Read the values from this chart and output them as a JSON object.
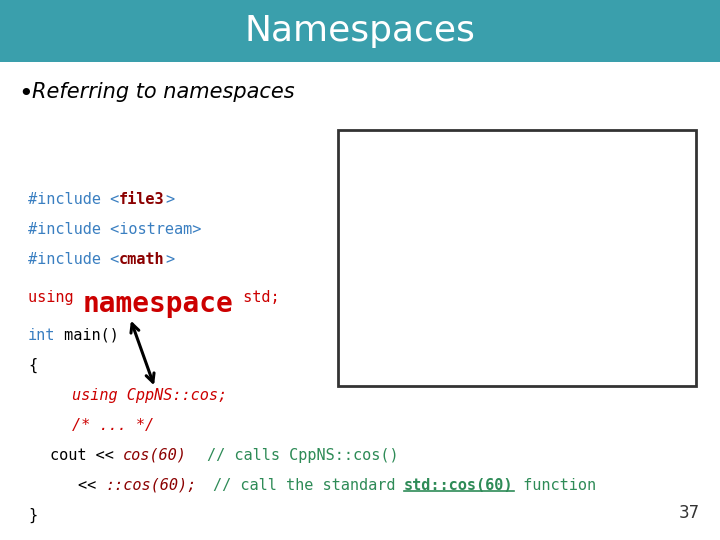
{
  "title": "Namespaces",
  "title_bg": "#3a9fac",
  "title_color": "#ffffff",
  "bullet": "Referring to namespaces",
  "bg_color": "#ffffff",
  "slide_number": "37"
}
